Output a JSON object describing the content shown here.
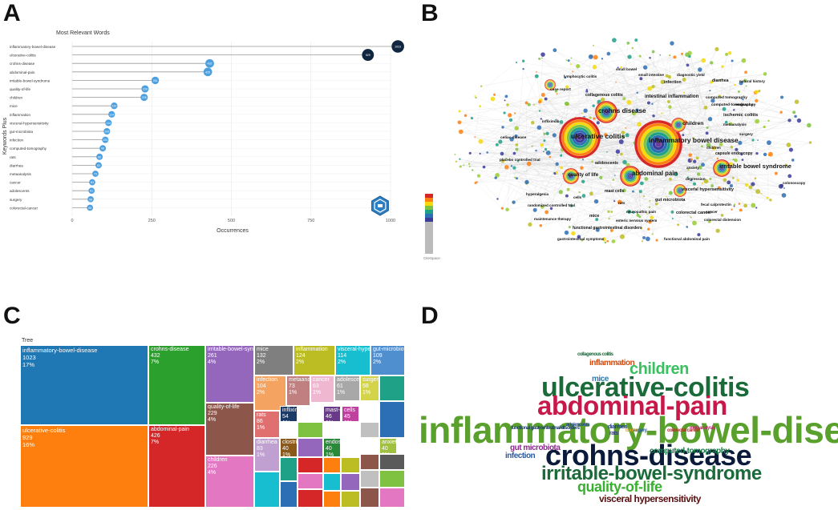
{
  "panels": {
    "a": {
      "letter": "A"
    },
    "b": {
      "letter": "B"
    },
    "c": {
      "letter": "C"
    },
    "d": {
      "letter": "D"
    }
  },
  "chart_data": [
    {
      "type": "lollipop",
      "title": "Most Relevant Words",
      "xlabel": "Occurrences",
      "ylabel": "Keywords Plus",
      "xlim": [
        0,
        1050
      ],
      "xticks": [
        0,
        250,
        500,
        750,
        1000
      ],
      "grid": true,
      "categories": [
        "inflammatory-bowel-disease",
        "ulcerative-colitis",
        "crohns-disease",
        "abdominal-pain",
        "irritable-bowel-syndrome",
        "quality-of-life",
        "children",
        "mice",
        "inflammation",
        "visceral-hypersensitivity",
        "gut-microbiota",
        "infection",
        "computed-tomography",
        "rats",
        "diarrhea",
        "metaanalysis",
        "cancer",
        "adolescents",
        "surgery",
        "colorectal-cancer"
      ],
      "values": [
        1023,
        929,
        432,
        426,
        261,
        229,
        226,
        132,
        124,
        114,
        109,
        104,
        96,
        86,
        83,
        73,
        63,
        61,
        58,
        56
      ],
      "point_labels": [
        "1023",
        "929",
        "432",
        "426",
        "261",
        "229",
        "226",
        "132",
        "124",
        "114",
        "109",
        "104",
        "96",
        "86",
        "83",
        "73",
        "63",
        "61",
        "58",
        "56"
      ]
    },
    {
      "type": "network",
      "node_labels": [
        "small bowel",
        "lymphocytic colitis",
        "small intestine",
        "diagnostic yield",
        "infection",
        "diarrhea",
        "natural history",
        "case report",
        "collagenous colitis",
        "intestinal inflammation",
        "computed tomography",
        "computed-tomography",
        "endoscopy",
        "crohns disease",
        "ischemic colitis",
        "children",
        "infliximab",
        "metaanalysis",
        "surgery",
        "celiac disease",
        "ulcerative colitis",
        "inflammatory bowel disease",
        "children",
        "capsule endoscopy",
        "placebo controlled trial",
        "adolescents",
        "anxiety",
        "irritable bowel syndrome",
        "quality of life",
        "abdominal pain",
        "depression",
        "mast cells",
        "visceral hypersensitivity",
        "colonoscopy",
        "hyperalgesia",
        "cells",
        "randomized controlled trial",
        "rats",
        "gut microbiota",
        "mice",
        "neuropathic pain",
        "colorectal cancer",
        "fecal calprotectin",
        "cancer",
        "colorectal distension",
        "maintenance therapy",
        "enteric nervous system",
        "functional gastrointestinal disorders",
        "gastrointestinal symptoms",
        "functional abdominal pain"
      ],
      "logo_text": "CiteSpace"
    },
    {
      "type": "treemap",
      "title": "Tree",
      "cells": [
        {
          "name": "inflammatory-bowel-disease",
          "value": "1023",
          "pct": "17%",
          "color": "#1f77b4"
        },
        {
          "name": "ulcerative-colitis",
          "value": "929",
          "pct": "16%",
          "color": "#ff7f0e"
        },
        {
          "name": "crohns-disease",
          "value": "432",
          "pct": "7%",
          "color": "#2ca02c"
        },
        {
          "name": "abdominal-pain",
          "value": "426",
          "pct": "7%",
          "color": "#d62728"
        },
        {
          "name": "irritable-bowel-syndrome",
          "value": "261",
          "pct": "4%",
          "color": "#9467bd"
        },
        {
          "name": "quality-of-life",
          "value": "229",
          "pct": "4%",
          "color": "#8c564b"
        },
        {
          "name": "children",
          "value": "226",
          "pct": "4%",
          "color": "#e377c2"
        },
        {
          "name": "mice",
          "value": "132",
          "pct": "2%",
          "color": "#7f7f7f"
        },
        {
          "name": "inflammation",
          "value": "124",
          "pct": "2%",
          "color": "#bcbd22"
        },
        {
          "name": "visceral-hypersensitivity",
          "value": "114",
          "pct": "2%",
          "color": "#17becf"
        },
        {
          "name": "gut-microbiota",
          "value": "109",
          "pct": "2%",
          "color": "#4f8fcf"
        },
        {
          "name": "infection",
          "value": "104",
          "pct": "2%",
          "color": "#f4a460"
        },
        {
          "name": "metaanalysis",
          "value": "73",
          "pct": "1%",
          "color": "#c08080"
        },
        {
          "name": "cancer",
          "value": "63",
          "pct": "1%",
          "color": "#f0b8d0"
        },
        {
          "name": "adolescents",
          "value": "61",
          "pct": "1%",
          "color": "#a8a8a8"
        },
        {
          "name": "surgery",
          "value": "58",
          "pct": "1%",
          "color": "#d4d44a"
        },
        {
          "name": "rats",
          "value": "86",
          "pct": "1%",
          "color": "#e07070"
        },
        {
          "name": "infliximab",
          "value": "54",
          "pct": "1%",
          "color": "#1a3a6a"
        },
        {
          "name": "mast-cells",
          "value": "46",
          "pct": "1%",
          "color": "#6a3a8a"
        },
        {
          "name": "cells",
          "value": "45",
          "pct": "1%",
          "color": "#c040a0"
        },
        {
          "name": "diarrhea",
          "value": "83",
          "pct": "1%",
          "color": "#c0a0d0"
        },
        {
          "name": "clostridioides",
          "value": "40",
          "pct": "1%",
          "color": "#8a5a1a"
        },
        {
          "name": "endoscopy",
          "value": "40",
          "pct": "1%",
          "color": "#2a8a3a"
        },
        {
          "name": "anxiety",
          "value": "40",
          "pct": "1%",
          "color": "#a0c040"
        }
      ]
    },
    {
      "type": "wordcloud",
      "words": [
        {
          "text": "inflammatory-bowel-disease",
          "color": "#5aa02c"
        },
        {
          "text": "ulcerative-colitis",
          "color": "#1a6a3a"
        },
        {
          "text": "abdominal-pain",
          "color": "#c8184a"
        },
        {
          "text": "crohns-disease",
          "color": "#0a1a3a"
        },
        {
          "text": "irritable-bowel-syndrome",
          "color": "#1a6a3a"
        },
        {
          "text": "children",
          "color": "#3ac060"
        },
        {
          "text": "quality-of-life",
          "color": "#3ab030"
        },
        {
          "text": "visceral hypersensitivity",
          "color": "#5a1010"
        },
        {
          "text": "inflammation",
          "color": "#d04a10"
        },
        {
          "text": "mice",
          "color": "#2a7ab0"
        },
        {
          "text": "gut microbiota",
          "color": "#8a2a8a"
        },
        {
          "text": "infection",
          "color": "#2a5aa0"
        },
        {
          "text": "computed-tomography",
          "color": "#1a7a4a"
        },
        {
          "text": "diarrhea",
          "color": "#1a3a8a"
        },
        {
          "text": "rats",
          "color": "#3a3a8a"
        },
        {
          "text": "adolescents",
          "color": "#2a4a9a"
        },
        {
          "text": "surgery",
          "color": "#2a5aa0"
        },
        {
          "text": "cancer",
          "color": "#d0a020"
        },
        {
          "text": "colorectal cancer",
          "color": "#c02a2a"
        },
        {
          "text": "metaanalysis",
          "color": "#c02a6a"
        },
        {
          "text": "collagenous colitis",
          "color": "#1a6a3a"
        },
        {
          "text": "functional gastrointestinal disorders",
          "color": "#1a3a6a"
        }
      ]
    }
  ]
}
